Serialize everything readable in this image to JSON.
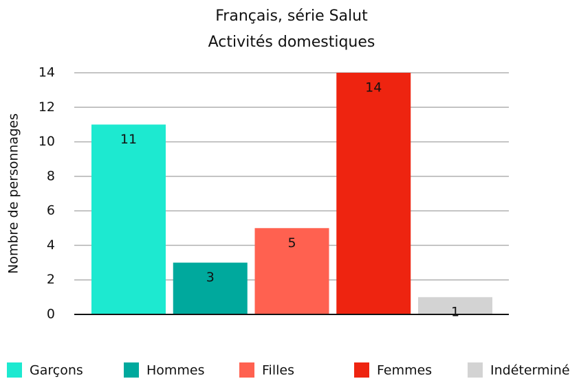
{
  "chart_data": {
    "type": "bar",
    "title": [
      "Français, série Salut",
      "Activités domestiques"
    ],
    "y_label": "Nombre de personnages",
    "categories": [
      "Garçons",
      "Hommes",
      "Filles",
      "Femmes",
      "Indéterminé"
    ],
    "series": [
      {
        "name": "Nombre de personnages",
        "colors": [
          "#1de9d0",
          "#00a99d",
          "#ff6150",
          "#ee2410",
          "#d3d3d3"
        ],
        "values": [
          11,
          3,
          5,
          14,
          1
        ]
      }
    ],
    "ylim": [
      0,
      14
    ],
    "yticks": [
      0,
      2,
      4,
      6,
      8,
      10,
      12,
      14
    ],
    "grid": true,
    "legend": "bottom"
  }
}
